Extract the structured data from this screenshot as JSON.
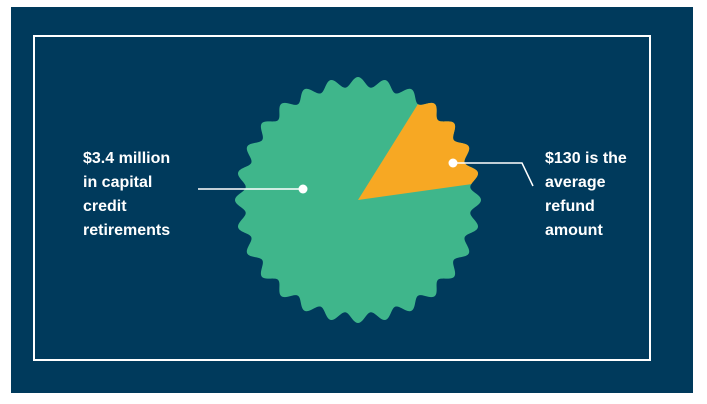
{
  "colors": {
    "background": "#003a5c",
    "frame": "#ffffff",
    "seal_fill": "#3fb68b",
    "slice_fill": "#f7a823",
    "callout": "#ffffff"
  },
  "callouts": {
    "left_text": "$3.4 million\nin capital\ncredit\nretirements",
    "right_text": "$130 is the\naverage\nrefund\namount"
  },
  "shape": {
    "type": "scalloped-seal-with-slice",
    "lobes": 28
  }
}
